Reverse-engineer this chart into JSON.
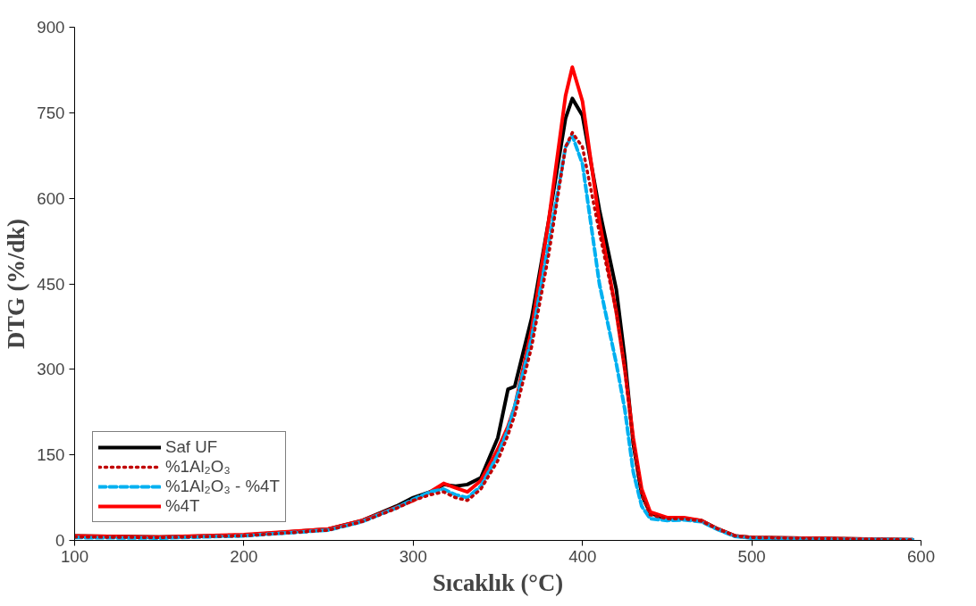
{
  "chart_data": {
    "type": "line",
    "xlabel": "Sıcaklık (°C)",
    "ylabel": "DTG (%/dk)",
    "x": [
      100,
      150,
      200,
      250,
      270,
      290,
      300,
      310,
      318,
      325,
      332,
      340,
      350,
      356,
      360,
      370,
      380,
      390,
      394,
      400,
      410,
      420,
      425,
      430,
      435,
      440,
      450,
      460,
      470,
      480,
      490,
      500,
      550,
      595
    ],
    "xlim": [
      100,
      600
    ],
    "xticks": [
      100,
      200,
      300,
      400,
      500,
      600
    ],
    "ylim": [
      0,
      900
    ],
    "yticks": [
      0,
      150,
      300,
      450,
      600,
      750,
      900
    ],
    "grid": false,
    "legend": "bottom left",
    "marker": "none",
    "series": [
      {
        "name": "Saf UF",
        "color": "#000000",
        "line_style": "solid",
        "values": [
          8,
          6,
          9,
          20,
          35,
          60,
          75,
          85,
          98,
          95,
          98,
          110,
          180,
          265,
          270,
          390,
          560,
          740,
          775,
          745,
          580,
          440,
          320,
          170,
          80,
          48,
          37,
          38,
          35,
          20,
          8,
          5,
          3,
          1
        ]
      },
      {
        "name": "%1Al₂O₃",
        "color": "#c00000",
        "line_style": "dotted",
        "values": [
          6,
          5,
          8,
          18,
          33,
          56,
          70,
          80,
          85,
          75,
          70,
          90,
          140,
          185,
          220,
          340,
          500,
          690,
          715,
          690,
          540,
          400,
          300,
          170,
          80,
          45,
          38,
          38,
          34,
          20,
          8,
          5,
          3,
          1
        ]
      },
      {
        "name": "%1Al₂O₃ - %4T",
        "color": "#00b0f0",
        "line_style": "dashed",
        "values": [
          5,
          4,
          8,
          18,
          33,
          57,
          72,
          85,
          90,
          80,
          75,
          95,
          150,
          195,
          235,
          355,
          520,
          690,
          710,
          660,
          450,
          310,
          230,
          120,
          60,
          38,
          35,
          36,
          33,
          19,
          7,
          4,
          2,
          1
        ]
      },
      {
        "name": "%4T",
        "color": "#ff0000",
        "line_style": "solid",
        "values": [
          8,
          6,
          10,
          20,
          35,
          58,
          70,
          85,
          100,
          92,
          85,
          105,
          160,
          200,
          235,
          370,
          560,
          780,
          830,
          770,
          560,
          400,
          300,
          180,
          90,
          50,
          40,
          40,
          35,
          20,
          8,
          5,
          3,
          1
        ]
      }
    ]
  }
}
